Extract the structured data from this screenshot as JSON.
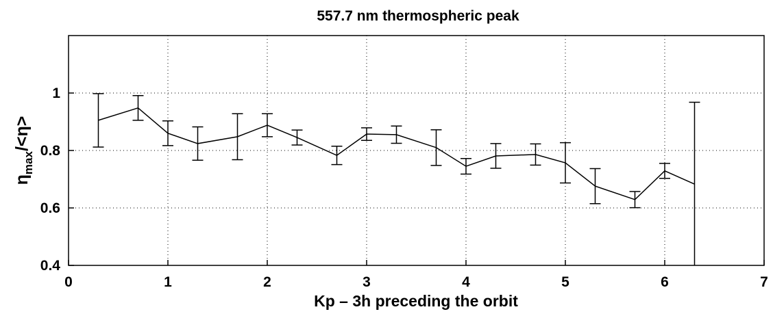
{
  "chart_data": {
    "type": "line",
    "title": "557.7 nm thermospheric peak",
    "xlabel": "Kp – 3h preceding the orbit",
    "ylabel": {
      "symbol": "η",
      "subscript": "max",
      "rest": "/<η>"
    },
    "x": [
      0.3,
      0.7,
      1,
      1.3,
      1.7,
      2,
      2.3,
      2.7,
      3,
      3.3,
      3.7,
      4,
      4.3,
      4.7,
      5,
      5.3,
      5.7,
      6,
      6.3
    ],
    "series": [
      {
        "color": "#000000",
        "values": [
          0.905,
          0.948,
          0.86,
          0.824,
          0.848,
          0.888,
          0.845,
          0.783,
          0.857,
          0.855,
          0.81,
          0.745,
          0.781,
          0.786,
          0.757,
          0.676,
          0.629,
          0.729,
          0.683
        ],
        "errors": [
          0.093,
          0.043,
          0.043,
          0.058,
          0.08,
          0.04,
          0.026,
          0.032,
          0.022,
          0.03,
          0.062,
          0.027,
          0.043,
          0.037,
          0.07,
          0.061,
          0.028,
          0.026,
          0.285
        ]
      }
    ],
    "xlim": [
      0,
      7
    ],
    "xticks": [
      0,
      1,
      2,
      3,
      4,
      5,
      6,
      7
    ],
    "ylim": [
      0.4,
      1.2
    ],
    "yticks": [
      0.4,
      0.6,
      0.8,
      1
    ],
    "grid": true
  }
}
